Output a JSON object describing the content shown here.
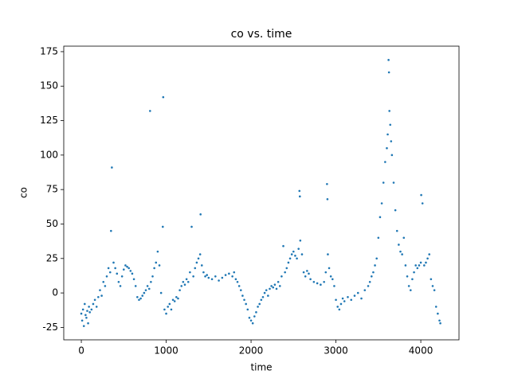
{
  "chart_data": {
    "type": "scatter",
    "title": "co vs. time",
    "x_label": "time",
    "y_label": "co",
    "color": "#1f77b4",
    "x": [
      0,
      10,
      20,
      30,
      40,
      50,
      60,
      70,
      80,
      90,
      100,
      120,
      140,
      160,
      180,
      200,
      220,
      240,
      260,
      280,
      300,
      320,
      340,
      350,
      360,
      380,
      400,
      420,
      440,
      460,
      480,
      500,
      520,
      540,
      560,
      580,
      600,
      620,
      640,
      660,
      680,
      700,
      720,
      740,
      760,
      780,
      800,
      810,
      820,
      840,
      860,
      880,
      900,
      920,
      940,
      960,
      965,
      980,
      1000,
      1020,
      1040,
      1060,
      1080,
      1100,
      1120,
      1140,
      1160,
      1180,
      1200,
      1220,
      1240,
      1260,
      1280,
      1300,
      1320,
      1340,
      1360,
      1380,
      1400,
      1405,
      1420,
      1440,
      1460,
      1480,
      1500,
      1540,
      1580,
      1620,
      1660,
      1700,
      1740,
      1780,
      1800,
      1820,
      1840,
      1860,
      1880,
      1900,
      1920,
      1940,
      1960,
      1980,
      2000,
      2020,
      2040,
      2060,
      2080,
      2100,
      2120,
      2140,
      2160,
      2180,
      2200,
      2220,
      2240,
      2260,
      2280,
      2300,
      2320,
      2340,
      2360,
      2380,
      2400,
      2420,
      2440,
      2460,
      2480,
      2500,
      2520,
      2540,
      2560,
      2570,
      2575,
      2580,
      2600,
      2620,
      2640,
      2660,
      2680,
      2700,
      2740,
      2780,
      2820,
      2860,
      2880,
      2895,
      2900,
      2905,
      2920,
      2940,
      2960,
      2980,
      3000,
      3020,
      3040,
      3060,
      3080,
      3100,
      3140,
      3180,
      3220,
      3260,
      3300,
      3340,
      3380,
      3400,
      3420,
      3440,
      3460,
      3480,
      3500,
      3520,
      3540,
      3560,
      3580,
      3600,
      3610,
      3620,
      3625,
      3630,
      3640,
      3650,
      3660,
      3680,
      3700,
      3720,
      3740,
      3760,
      3780,
      3800,
      3820,
      3840,
      3860,
      3880,
      3900,
      3920,
      3940,
      3960,
      3980,
      4000,
      4005,
      4020,
      4040,
      4060,
      4080,
      4100,
      4120,
      4140,
      4160,
      4180,
      4200,
      4220,
      4230
    ],
    "values": [
      -15,
      -20,
      -12,
      -24,
      -8,
      -16,
      -18,
      -13,
      -22,
      -10,
      -14,
      -12,
      -8,
      -5,
      -10,
      -3,
      2,
      -2,
      8,
      5,
      12,
      18,
      15,
      45,
      91,
      22,
      18,
      14,
      8,
      5,
      12,
      17,
      20,
      19,
      18,
      16,
      14,
      10,
      5,
      -3,
      -5,
      -4,
      -2,
      0,
      2,
      5,
      3,
      132,
      8,
      12,
      18,
      22,
      30,
      20,
      0,
      48,
      142,
      -12,
      -15,
      -10,
      -8,
      -12,
      -5,
      -6,
      -3,
      -4,
      2,
      5,
      8,
      6,
      10,
      8,
      15,
      48,
      12,
      18,
      22,
      25,
      28,
      57,
      20,
      15,
      12,
      13,
      11,
      10,
      12,
      9,
      11,
      13,
      14,
      12,
      15,
      10,
      8,
      5,
      2,
      -2,
      -5,
      -8,
      -12,
      -18,
      -20,
      -22,
      -17,
      -14,
      -10,
      -8,
      -5,
      -3,
      0,
      2,
      -2,
      3,
      5,
      4,
      6,
      3,
      8,
      5,
      12,
      34,
      15,
      18,
      22,
      25,
      28,
      30,
      27,
      25,
      32,
      74,
      70,
      38,
      28,
      15,
      12,
      16,
      14,
      10,
      8,
      7,
      6,
      8,
      15,
      79,
      68,
      28,
      18,
      12,
      10,
      5,
      -5,
      -10,
      -12,
      -8,
      -4,
      -6,
      -3,
      -5,
      -2,
      0,
      -4,
      2,
      5,
      8,
      12,
      15,
      20,
      25,
      40,
      55,
      65,
      80,
      95,
      105,
      115,
      169,
      160,
      132,
      122,
      110,
      100,
      80,
      60,
      45,
      35,
      30,
      28,
      40,
      20,
      12,
      5,
      2,
      10,
      15,
      20,
      18,
      20,
      22,
      71,
      65,
      20,
      22,
      25,
      28,
      10,
      5,
      2,
      -10,
      -15,
      -20,
      -22
    ],
    "xlim": [
      -207,
      4450
    ],
    "ylim": [
      -34,
      179
    ],
    "xticks": [
      0,
      1000,
      2000,
      3000,
      4000
    ],
    "yticks": [
      -25,
      0,
      25,
      50,
      75,
      100,
      125,
      150,
      175
    ]
  }
}
